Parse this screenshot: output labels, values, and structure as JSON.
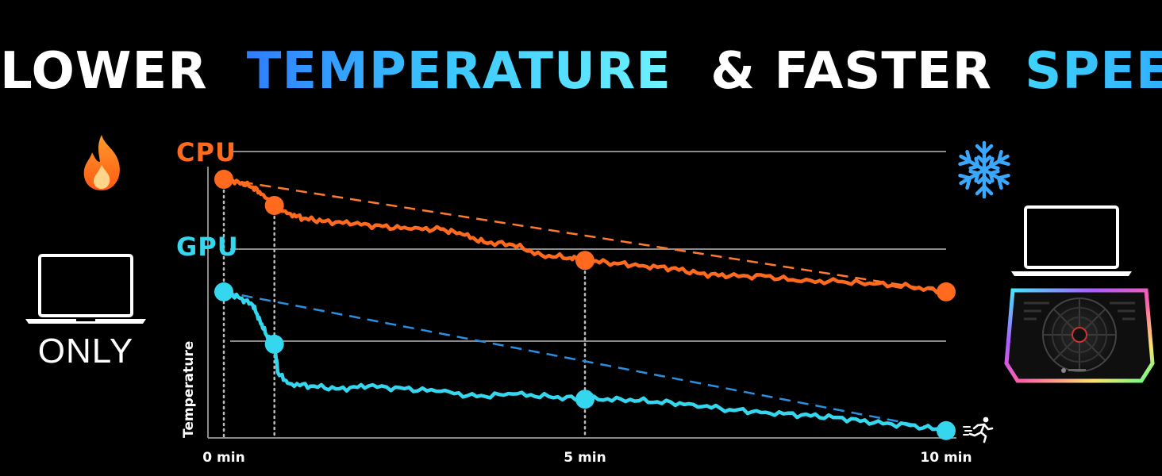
{
  "headline": {
    "part1": "LOWER",
    "part2": "TEMPERATURE",
    "part3": "& FASTER",
    "part4": "SPEED"
  },
  "left_panel": {
    "icon": "fire-icon",
    "device_icon": "laptop-icon",
    "label": "ONLY"
  },
  "right_panel": {
    "icon": "snowflake-icon",
    "device_icon": "laptop-on-cooling-pad-icon",
    "runner_icon": "running-person-icon"
  },
  "colors": {
    "cpu": "#ff6a1f",
    "gpu": "#35d7ee",
    "cpu_dash": "#ff7a2e",
    "gpu_dash": "#2b8fe0",
    "grid": "#8a8a8a"
  },
  "chart_data": {
    "type": "line",
    "title": "",
    "xlabel": "",
    "ylabel": "Temperature",
    "x_ticks": [
      "0 min",
      "5 min",
      "10 min"
    ],
    "xlim": [
      0,
      10
    ],
    "series": [
      {
        "name": "CPU",
        "markers": [
          {
            "x": 0,
            "y": 100
          },
          {
            "x": 0.7,
            "y": 90
          },
          {
            "x": 5,
            "y": 69
          },
          {
            "x": 10,
            "y": 57
          }
        ],
        "values": [
          [
            0,
            100
          ],
          [
            0.2,
            99
          ],
          [
            0.4,
            97
          ],
          [
            0.55,
            94
          ],
          [
            0.7,
            90
          ],
          [
            0.9,
            87
          ],
          [
            1.1,
            85
          ],
          [
            1.4,
            84
          ],
          [
            1.8,
            83
          ],
          [
            2.2,
            82
          ],
          [
            2.6,
            81
          ],
          [
            3.0,
            81
          ],
          [
            3.3,
            79
          ],
          [
            3.6,
            76
          ],
          [
            4.0,
            75
          ],
          [
            4.4,
            71
          ],
          [
            4.8,
            70
          ],
          [
            5.0,
            69
          ],
          [
            5.4,
            68
          ],
          [
            5.8,
            67
          ],
          [
            6.2,
            66
          ],
          [
            6.6,
            64
          ],
          [
            7.0,
            63
          ],
          [
            7.5,
            63
          ],
          [
            8.0,
            61
          ],
          [
            8.5,
            61
          ],
          [
            9.0,
            60
          ],
          [
            9.5,
            59
          ],
          [
            10,
            57
          ]
        ],
        "trend": [
          [
            0,
            100
          ],
          [
            10,
            57
          ]
        ]
      },
      {
        "name": "GPU",
        "markers": [
          {
            "x": 0,
            "y": 57
          },
          {
            "x": 0.7,
            "y": 37
          },
          {
            "x": 5,
            "y": 16
          },
          {
            "x": 10,
            "y": 4
          }
        ],
        "values": [
          [
            0,
            57
          ],
          [
            0.2,
            55
          ],
          [
            0.4,
            52
          ],
          [
            0.5,
            46
          ],
          [
            0.6,
            40
          ],
          [
            0.7,
            37
          ],
          [
            0.75,
            26
          ],
          [
            0.9,
            22
          ],
          [
            1.2,
            21
          ],
          [
            1.6,
            20
          ],
          [
            2.0,
            21
          ],
          [
            2.5,
            20
          ],
          [
            3.0,
            19
          ],
          [
            3.5,
            17
          ],
          [
            4.0,
            18
          ],
          [
            4.5,
            17
          ],
          [
            5.0,
            16
          ],
          [
            5.5,
            16
          ],
          [
            6.0,
            15
          ],
          [
            6.5,
            14
          ],
          [
            7.0,
            12
          ],
          [
            7.5,
            11
          ],
          [
            8.0,
            10
          ],
          [
            8.5,
            9
          ],
          [
            9.0,
            7
          ],
          [
            9.5,
            6
          ],
          [
            10,
            4
          ]
        ],
        "trend": [
          [
            0,
            57
          ],
          [
            10,
            4
          ]
        ]
      }
    ],
    "grid": true,
    "legend": "left, inline labels"
  }
}
